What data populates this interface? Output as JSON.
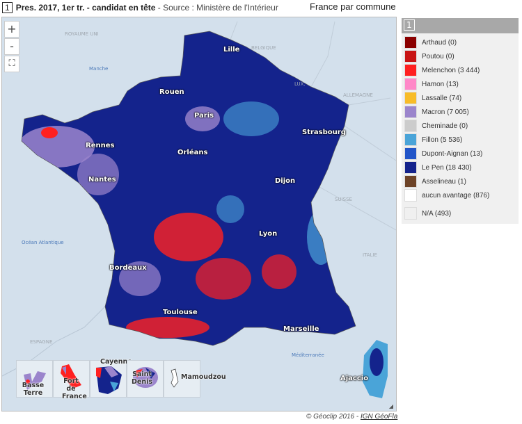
{
  "header": {
    "number": "1",
    "title": "Pres. 2017, 1er tr. - candidat en tête",
    "source": " - Source : Ministère de l'Intérieur",
    "scope": "France par commune"
  },
  "controls": {
    "zoom_in": "+",
    "zoom_out": "-",
    "fullscreen_icon": "fullscreen-icon"
  },
  "map": {
    "countries": [
      "ROYAUME UNI",
      "BELGIQUE",
      "LUX.",
      "ALLEMAGNE",
      "SUISSE",
      "ITALIE",
      "ESPAGNE"
    ],
    "seas": [
      "Manche",
      "Océan Atlantique",
      "Méditerranée"
    ],
    "cities": [
      "Lille",
      "Rouen",
      "Paris",
      "Strasbourg",
      "Rennes",
      "Orléans",
      "Nantes",
      "Dijon",
      "Lyon",
      "Bordeaux",
      "Toulouse",
      "Marseille",
      "Ajaccio"
    ],
    "insets": [
      {
        "label": "Basse Terre"
      },
      {
        "label": "Fort de France"
      },
      {
        "label": "Cayenne"
      },
      {
        "label": "Saint Denis"
      },
      {
        "label": "Mamoudzou"
      }
    ]
  },
  "legend": {
    "number": "1",
    "items": [
      {
        "label": "Arthaud (0)",
        "color": "#8b0000"
      },
      {
        "label": "Poutou (0)",
        "color": "#c81414"
      },
      {
        "label": "Melenchon (3 444)",
        "color": "#ff2020"
      },
      {
        "label": "Hamon (13)",
        "color": "#ff88c8"
      },
      {
        "label": "Lassalle (74)",
        "color": "#f8bc28"
      },
      {
        "label": "Macron (7 005)",
        "color": "#9b85cc"
      },
      {
        "label": "Cheminade (0)",
        "color": "#cccccc"
      },
      {
        "label": "Fillon (5 536)",
        "color": "#4aa4d8"
      },
      {
        "label": "Dupont-Aignan (13)",
        "color": "#2255c8"
      },
      {
        "label": "Le Pen (18 430)",
        "color": "#14238c"
      },
      {
        "label": "Asselineau (1)",
        "color": "#6e4428"
      },
      {
        "label": "aucun avantage (876)",
        "color": "#ffffff"
      },
      {
        "label": "N/A (493)",
        "color": "#f0f0f0"
      }
    ]
  },
  "footer": {
    "copyright": "© Géoclip 2016 - ",
    "link": "IGN GéoFla"
  }
}
